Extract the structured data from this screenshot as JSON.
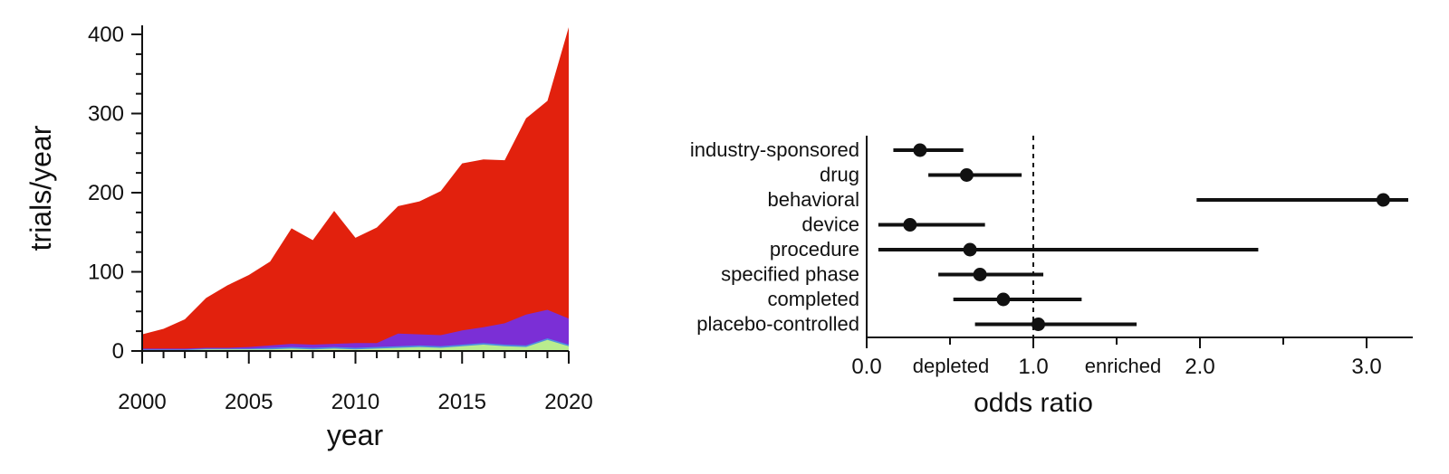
{
  "chart_data": [
    {
      "type": "area",
      "stacked": true,
      "title": "",
      "xlabel": "year",
      "ylabel": "trials/year",
      "xlim": [
        2000,
        2020
      ],
      "ylim": [
        0,
        400
      ],
      "x_ticks": [
        2000,
        2005,
        2010,
        2015,
        2020
      ],
      "y_ticks": [
        0,
        100,
        200,
        300,
        400
      ],
      "x": [
        2000,
        2001,
        2002,
        2003,
        2004,
        2005,
        2006,
        2007,
        2008,
        2009,
        2010,
        2011,
        2012,
        2013,
        2014,
        2015,
        2016,
        2017,
        2018,
        2019,
        2020
      ],
      "series": [
        {
          "color": "#b9ec8e",
          "values": [
            1,
            1,
            1,
            2,
            2,
            2,
            2,
            3,
            2,
            3,
            2,
            3,
            4,
            5,
            4,
            6,
            8,
            6,
            5,
            14,
            6
          ]
        },
        {
          "color": "#4e8ee0",
          "values": [
            1,
            1,
            1,
            1,
            1,
            1,
            2,
            2,
            2,
            2,
            2,
            2,
            2,
            2,
            2,
            2,
            2,
            2,
            2,
            2,
            2
          ]
        },
        {
          "color": "#7b2fd6",
          "values": [
            1,
            1,
            1,
            1,
            1,
            2,
            3,
            4,
            4,
            4,
            6,
            5,
            16,
            14,
            14,
            18,
            20,
            27,
            39,
            36,
            33
          ]
        },
        {
          "color": "#e2210d",
          "values": [
            18,
            25,
            37,
            63,
            79,
            91,
            106,
            146,
            132,
            168,
            133,
            146,
            161,
            168,
            182,
            211,
            212,
            206,
            248,
            264,
            368
          ]
        }
      ],
      "grid": false
    },
    {
      "type": "scatter",
      "subtype": "forest",
      "xlabel": "odds ratio",
      "xlim": [
        0,
        3.25
      ],
      "x_ticks": [
        "0.0",
        "1.0",
        "2.0",
        "3.0"
      ],
      "reference_line": 1.0,
      "annotations": [
        "depleted",
        "enriched"
      ],
      "rows": [
        {
          "label": "industry-sponsored",
          "or": 0.32,
          "lo": 0.16,
          "hi": 0.58
        },
        {
          "label": "drug",
          "or": 0.6,
          "lo": 0.37,
          "hi": 0.93
        },
        {
          "label": "behavioral",
          "or": 3.1,
          "lo": 1.98,
          "hi": 3.25
        },
        {
          "label": "device",
          "or": 0.26,
          "lo": 0.07,
          "hi": 0.71
        },
        {
          "label": "procedure",
          "or": 0.62,
          "lo": 0.07,
          "hi": 2.35
        },
        {
          "label": "specified phase",
          "or": 0.68,
          "lo": 0.43,
          "hi": 1.06
        },
        {
          "label": "completed",
          "or": 0.82,
          "lo": 0.52,
          "hi": 1.29
        },
        {
          "label": "placebo-controlled",
          "or": 1.03,
          "lo": 0.65,
          "hi": 1.62
        }
      ]
    }
  ]
}
